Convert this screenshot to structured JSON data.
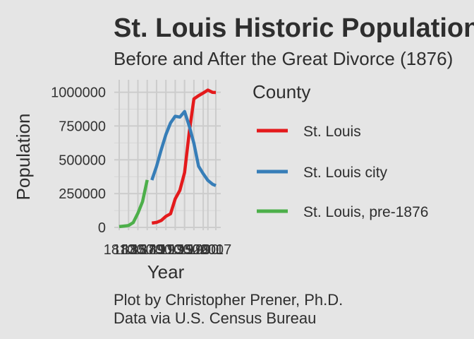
{
  "chart_data": {
    "type": "line",
    "title": "St. Louis Historic Population",
    "subtitle": "Before and After the Great Divorce (1876)",
    "xlabel": "Year",
    "ylabel": "Population",
    "ylim": [
      0,
      1050000
    ],
    "xlim": [
      1810,
      2017
    ],
    "y_ticks": [
      {
        "value": 0,
        "label": "0"
      },
      {
        "value": 250000,
        "label": "250000"
      },
      {
        "value": 500000,
        "label": "500000"
      },
      {
        "value": 750000,
        "label": "750000"
      },
      {
        "value": 1000000,
        "label": "1000000"
      }
    ],
    "x_ticks": [
      {
        "value": 1810,
        "label": "1810"
      },
      {
        "value": 1830,
        "label": "1830"
      },
      {
        "value": 1850,
        "label": "1850"
      },
      {
        "value": 1870,
        "label": "1870"
      },
      {
        "value": 1890,
        "label": "1890"
      },
      {
        "value": 1910,
        "label": "1910"
      },
      {
        "value": 1930,
        "label": "1930"
      },
      {
        "value": 1950,
        "label": "1950"
      },
      {
        "value": 1970,
        "label": "1970"
      },
      {
        "value": 1990,
        "label": "1990"
      },
      {
        "value": 2000,
        "label": "2000"
      },
      {
        "value": 2017,
        "label": "2017"
      }
    ],
    "grid": true,
    "legend": {
      "title": "County",
      "position": "right"
    },
    "series": [
      {
        "name": "St. Louis",
        "color": "#e41a1c",
        "points": [
          {
            "x": 1880,
            "y": 32000
          },
          {
            "x": 1890,
            "y": 37000
          },
          {
            "x": 1900,
            "y": 51000
          },
          {
            "x": 1910,
            "y": 82000
          },
          {
            "x": 1920,
            "y": 101000
          },
          {
            "x": 1930,
            "y": 211000
          },
          {
            "x": 1940,
            "y": 274000
          },
          {
            "x": 1950,
            "y": 406000
          },
          {
            "x": 1960,
            "y": 704000
          },
          {
            "x": 1970,
            "y": 951000
          },
          {
            "x": 1980,
            "y": 974000
          },
          {
            "x": 1990,
            "y": 994000
          },
          {
            "x": 2000,
            "y": 1016000
          },
          {
            "x": 2010,
            "y": 999000
          },
          {
            "x": 2017,
            "y": 998000
          }
        ]
      },
      {
        "name": "St. Louis city",
        "color": "#377eb8",
        "points": [
          {
            "x": 1880,
            "y": 350000
          },
          {
            "x": 1890,
            "y": 451000
          },
          {
            "x": 1900,
            "y": 575000
          },
          {
            "x": 1910,
            "y": 687000
          },
          {
            "x": 1920,
            "y": 773000
          },
          {
            "x": 1930,
            "y": 822000
          },
          {
            "x": 1940,
            "y": 816000
          },
          {
            "x": 1950,
            "y": 857000
          },
          {
            "x": 1960,
            "y": 750000
          },
          {
            "x": 1970,
            "y": 622000
          },
          {
            "x": 1980,
            "y": 453000
          },
          {
            "x": 1990,
            "y": 397000
          },
          {
            "x": 2000,
            "y": 348000
          },
          {
            "x": 2010,
            "y": 319000
          },
          {
            "x": 2017,
            "y": 309000
          }
        ]
      },
      {
        "name": "St. Louis, pre-1876",
        "color": "#4daf4a",
        "points": [
          {
            "x": 1810,
            "y": 5700
          },
          {
            "x": 1820,
            "y": 10000
          },
          {
            "x": 1830,
            "y": 14000
          },
          {
            "x": 1840,
            "y": 36000
          },
          {
            "x": 1850,
            "y": 105000
          },
          {
            "x": 1860,
            "y": 191000
          },
          {
            "x": 1870,
            "y": 351000
          }
        ]
      }
    ],
    "caption": [
      "Plot by Christopher Prener, Ph.D.",
      "Data via U.S. Census Bureau"
    ]
  }
}
